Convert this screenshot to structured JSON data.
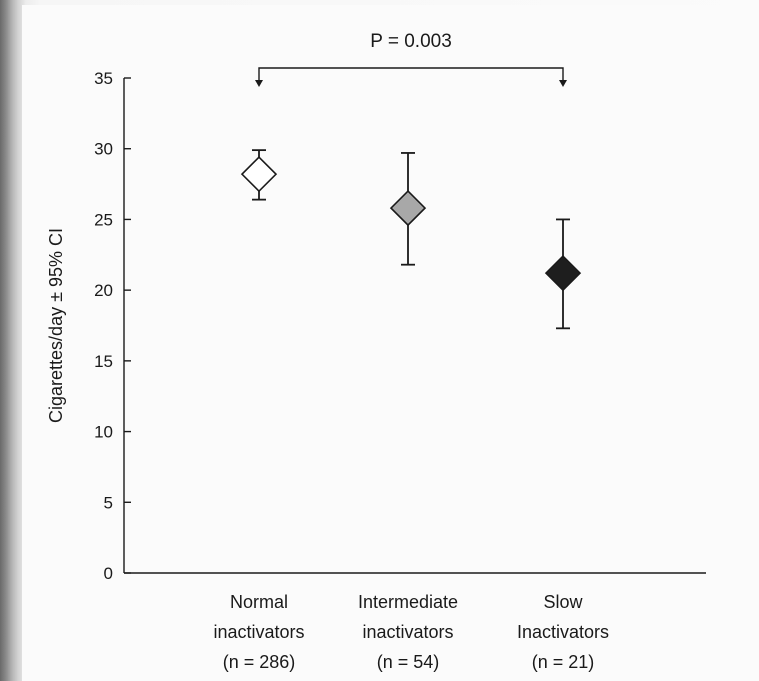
{
  "chart_data": {
    "type": "scatter",
    "title": "",
    "xlabel": "",
    "ylabel": "Cigarettes/day ± 95% CI",
    "ylim": [
      0,
      35
    ],
    "yticks": [
      0,
      5,
      10,
      15,
      20,
      25,
      30,
      35
    ],
    "grid": false,
    "categories": [
      {
        "line1": "Normal",
        "line2": "inactivators",
        "n_label": "(n = 286)"
      },
      {
        "line1": "Intermediate",
        "line2": "inactivators",
        "n_label": "(n = 54)"
      },
      {
        "line1": "Slow",
        "line2": "Inactivators",
        "n_label": "(n = 21)"
      }
    ],
    "points": [
      {
        "category": "Normal inactivators",
        "n": 286,
        "mean": 28.2,
        "ci_low": 26.4,
        "ci_high": 29.9,
        "fill": "#ffffff"
      },
      {
        "category": "Intermediate inactivators",
        "n": 54,
        "mean": 25.8,
        "ci_low": 21.8,
        "ci_high": 29.7,
        "fill": "#a8a8a8"
      },
      {
        "category": "Slow Inactivators",
        "n": 21,
        "mean": 21.2,
        "ci_low": 17.3,
        "ci_high": 25.0,
        "fill": "#1e1e1e"
      }
    ],
    "annotation": {
      "text": "P = 0.003",
      "from_category": 0,
      "to_category": 2
    }
  }
}
